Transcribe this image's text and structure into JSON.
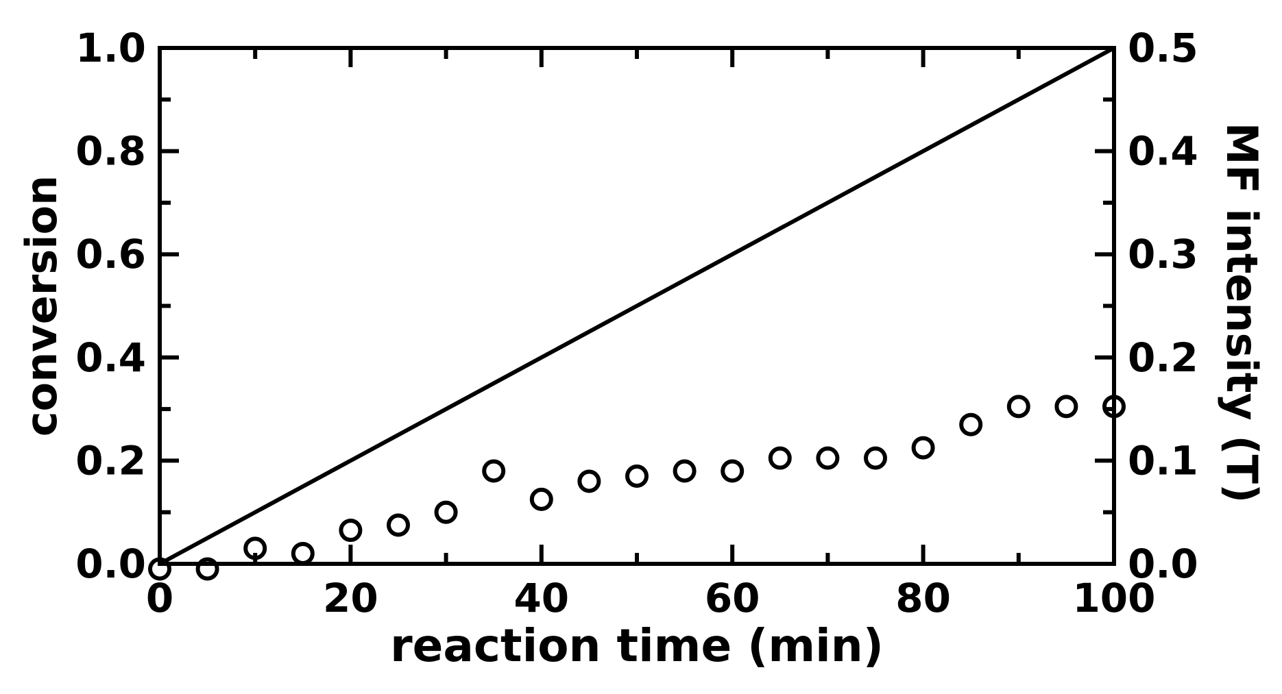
{
  "chart_data": {
    "type": "scatter",
    "xlabel": "reaction time (min)",
    "ylabel": "conversion",
    "y2label": "MF intensity (T)",
    "xlim": [
      0,
      100
    ],
    "ylim": [
      0,
      1.0
    ],
    "y2lim": [
      0,
      0.5
    ],
    "x_ticks": [
      "0",
      "20",
      "40",
      "60",
      "80",
      "100"
    ],
    "y_ticks": [
      "0.0",
      "0.2",
      "0.4",
      "0.6",
      "0.8",
      "1.0"
    ],
    "y2_ticks": [
      "0.0",
      "0.1",
      "0.2",
      "0.3",
      "0.4",
      "0.5"
    ],
    "grid": false,
    "legend": "none",
    "series": [
      {
        "axis": "left",
        "style": "open-circle",
        "x": [
          0,
          5,
          10,
          15,
          20,
          25,
          30,
          35,
          40,
          45,
          50,
          55,
          60,
          65,
          70,
          75,
          80,
          85,
          90,
          95,
          100
        ],
        "y": [
          -0.01,
          -0.01,
          0.03,
          0.02,
          0.065,
          0.075,
          0.1,
          0.18,
          0.125,
          0.16,
          0.17,
          0.18,
          0.18,
          0.205,
          0.205,
          0.205,
          0.225,
          0.27,
          0.305,
          0.305,
          0.305
        ]
      },
      {
        "axis": "right",
        "style": "solid-line",
        "x": [
          0,
          100
        ],
        "y": [
          0,
          0.5
        ]
      }
    ]
  }
}
